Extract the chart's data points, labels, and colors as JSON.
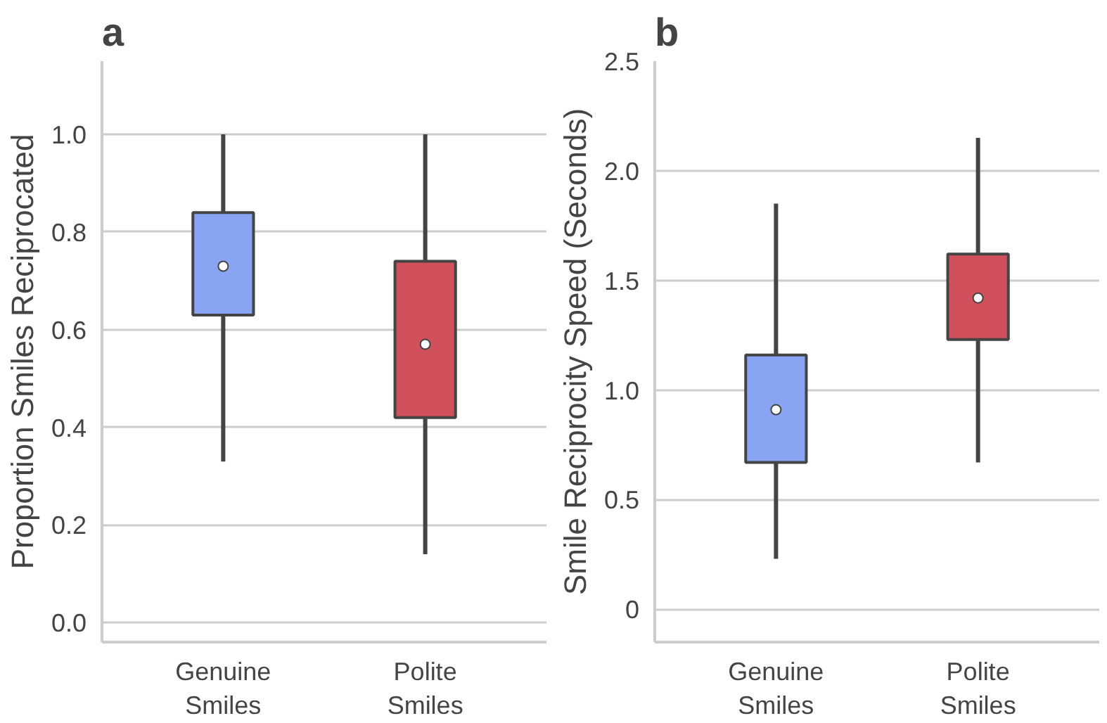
{
  "chart_data": [
    {
      "type": "box",
      "annotations": [
        "a"
      ],
      "ylabel": "Proportion Smiles Reciprocated",
      "categories": [
        "Genuine Smiles",
        "Polite Smiles"
      ],
      "colors": [
        "#88a4f2",
        "#d0505c"
      ],
      "boxes": [
        {
          "low": 0.33,
          "q1": 0.63,
          "median": 0.73,
          "q3": 0.84,
          "high": 1.0
        },
        {
          "low": 0.14,
          "q1": 0.42,
          "median": 0.57,
          "q3": 0.74,
          "high": 1.0
        }
      ],
      "ylim": [
        -0.04,
        1.15
      ],
      "yticks": [
        {
          "value": 0,
          "label": "0.0"
        },
        {
          "value": 0.2,
          "label": "0.2"
        },
        {
          "value": 0.4,
          "label": "0.4"
        },
        {
          "value": 0.6,
          "label": "0.6"
        },
        {
          "value": 0.8,
          "label": "0.8"
        },
        {
          "value": 1.0,
          "label": "1.0"
        }
      ],
      "grid": "y"
    },
    {
      "type": "box",
      "annotations": [
        "b"
      ],
      "ylabel": "Smile Reciprocity Speed (Seconds)",
      "categories": [
        "Genuine Smiles",
        "Polite Smiles"
      ],
      "colors": [
        "#88a4f2",
        "#d0505c"
      ],
      "boxes": [
        {
          "low": 0.23,
          "q1": 0.67,
          "median": 0.91,
          "q3": 1.16,
          "high": 1.85
        },
        {
          "low": 0.67,
          "q1": 1.23,
          "median": 1.42,
          "q3": 1.62,
          "high": 2.15
        }
      ],
      "ylim": [
        -0.15,
        2.5
      ],
      "yticks": [
        0,
        0.5,
        {
          "value": 1.0,
          "label": "1.0"
        },
        1.5,
        {
          "value": 2.0,
          "label": "2.0"
        },
        2.5
      ],
      "grid": "y"
    }
  ]
}
